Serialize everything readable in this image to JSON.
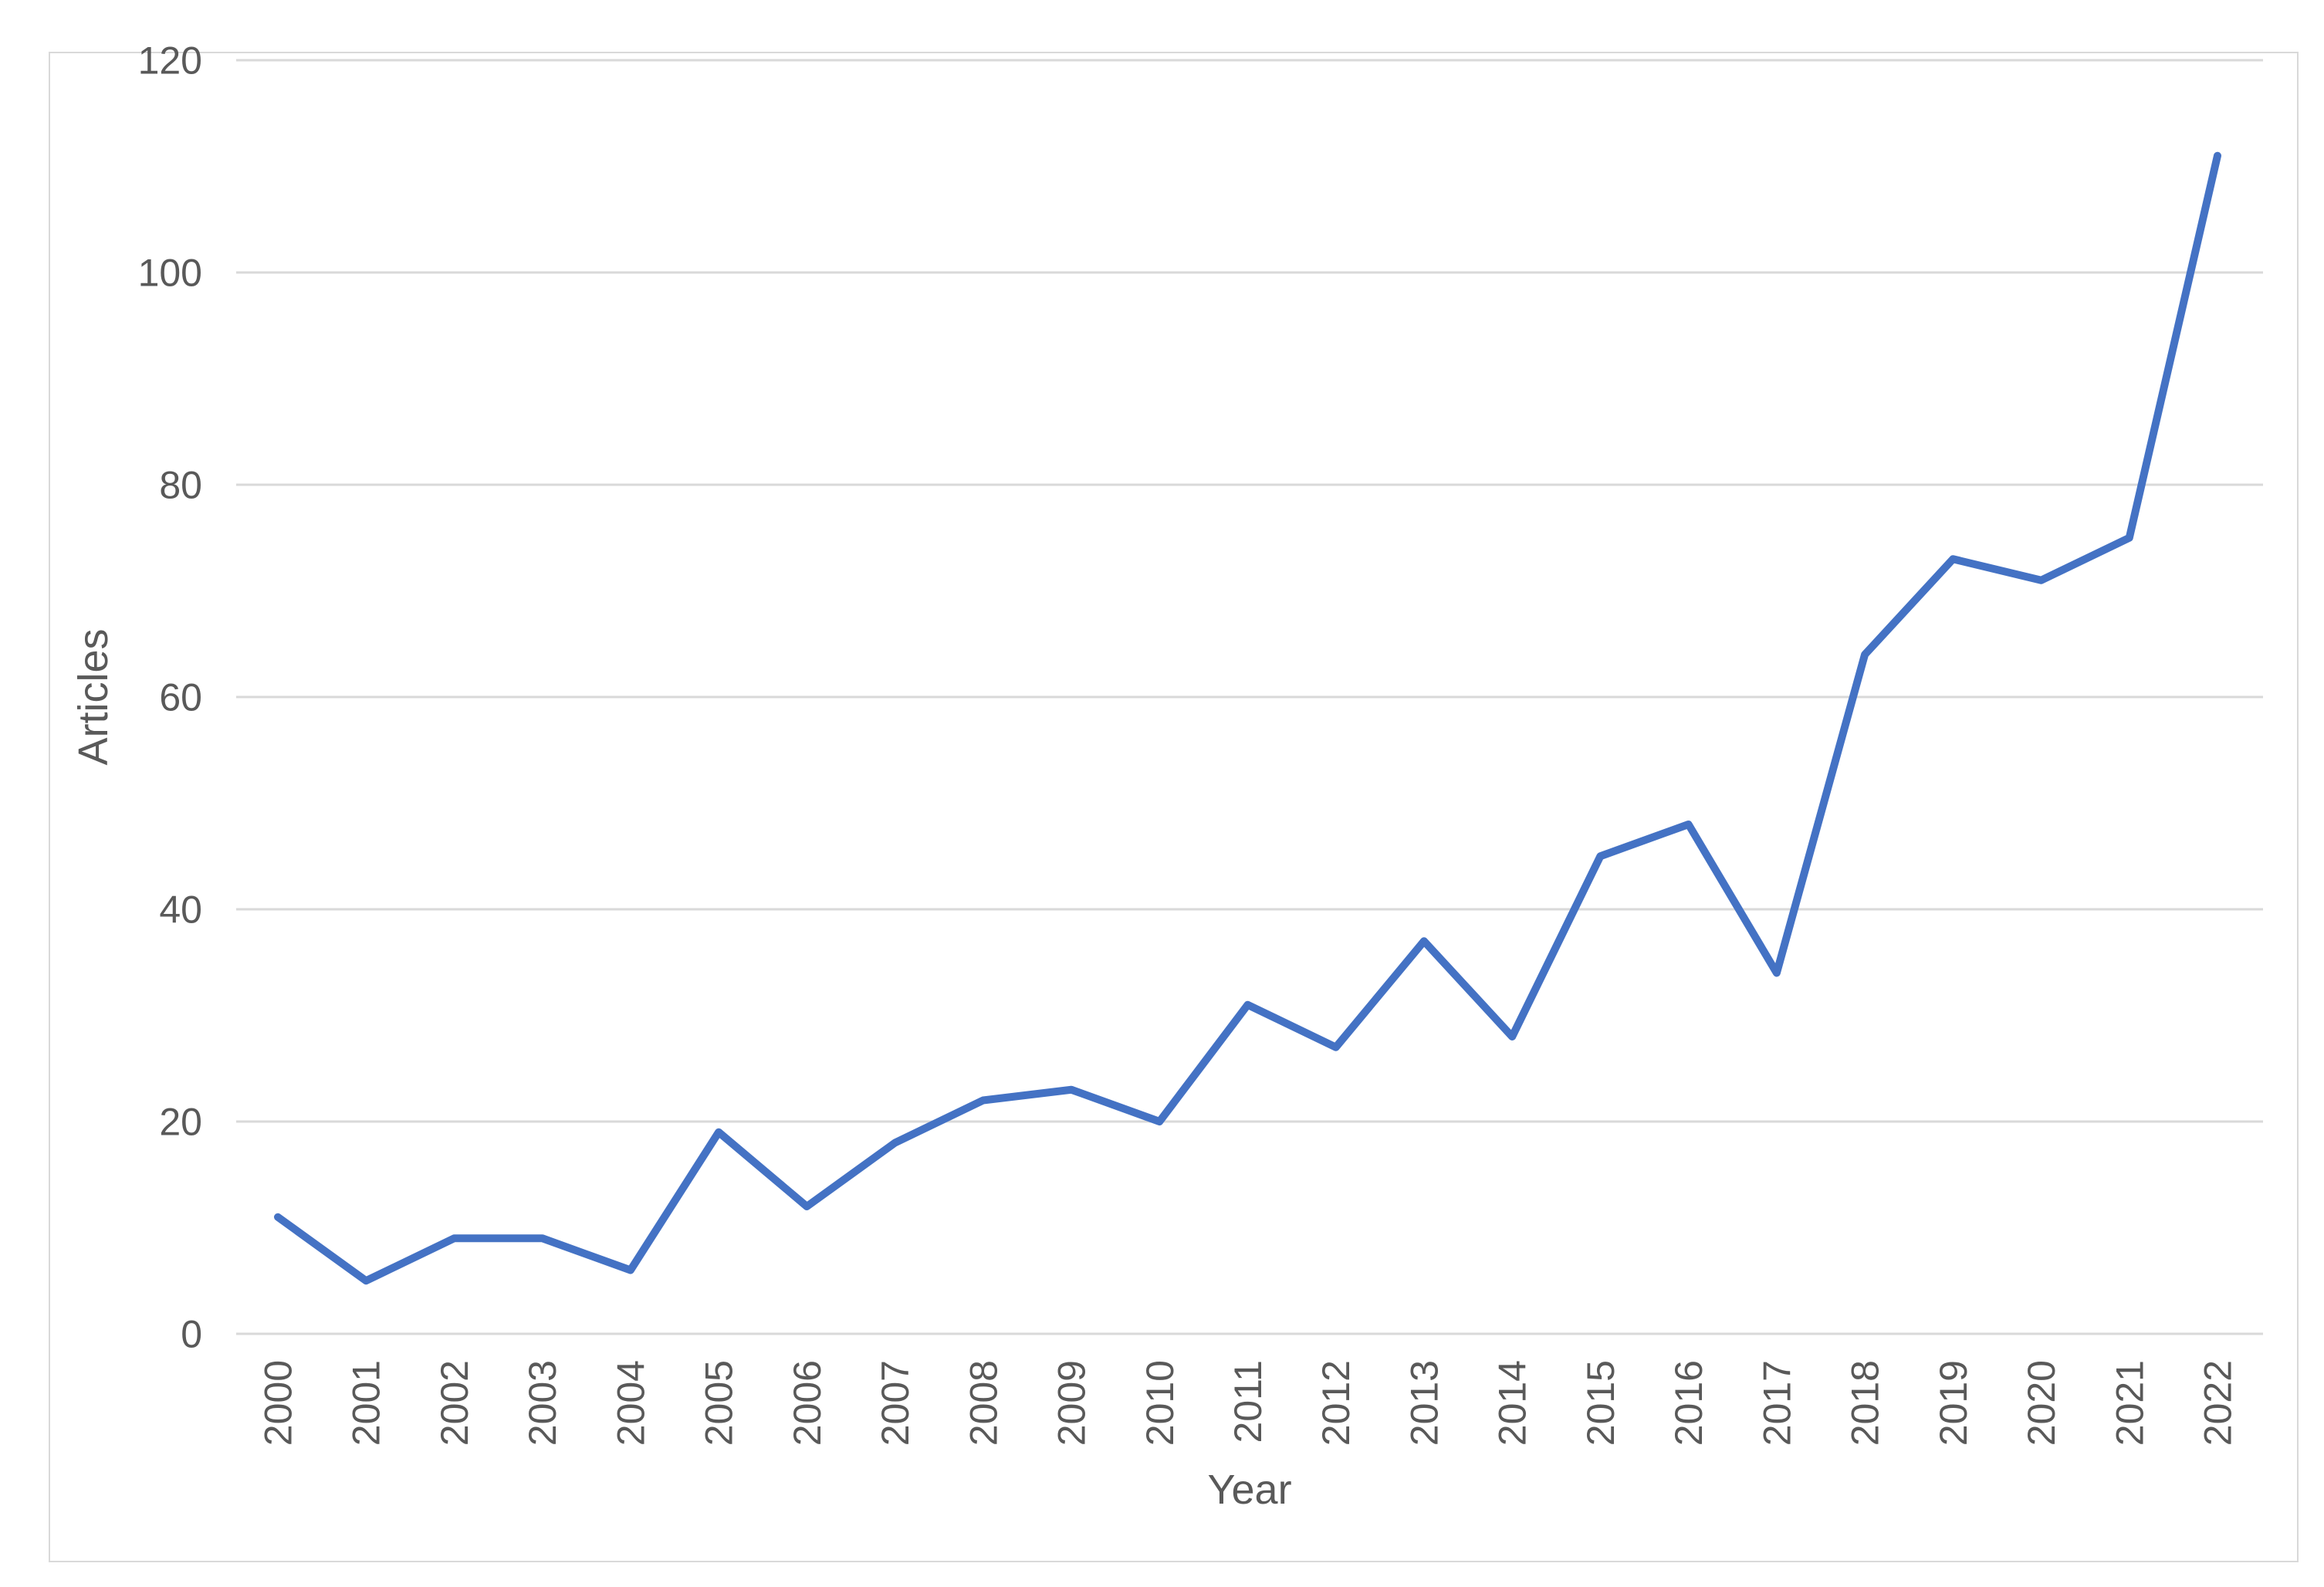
{
  "figure": {
    "background": "#ffffff",
    "border_color": "#d9d9d9"
  },
  "chart_data": {
    "type": "line",
    "title": "",
    "xlabel": "Year",
    "ylabel": "Articles",
    "categories": [
      "2000",
      "2001",
      "2002",
      "2003",
      "2004",
      "2005",
      "2006",
      "2007",
      "2008",
      "2009",
      "2010",
      "2011",
      "2012",
      "2013",
      "2014",
      "2015",
      "2016",
      "2017",
      "2018",
      "2019",
      "2020",
      "2021",
      "2022"
    ],
    "series": [
      {
        "name": "Articles",
        "color": "#4472c4",
        "values": [
          11,
          5,
          9,
          9,
          6,
          19,
          12,
          18,
          22,
          23,
          20,
          31,
          27,
          37,
          28,
          45,
          48,
          34,
          64,
          73,
          71,
          75,
          111
        ]
      }
    ],
    "ylim": [
      0,
      120
    ],
    "yticks": [
      0,
      20,
      40,
      60,
      80,
      100,
      120
    ],
    "grid": true,
    "legend": "none",
    "gridline_color": "#d9d9d9",
    "tick_label_color": "#595959",
    "axis_title_color": "#595959"
  }
}
